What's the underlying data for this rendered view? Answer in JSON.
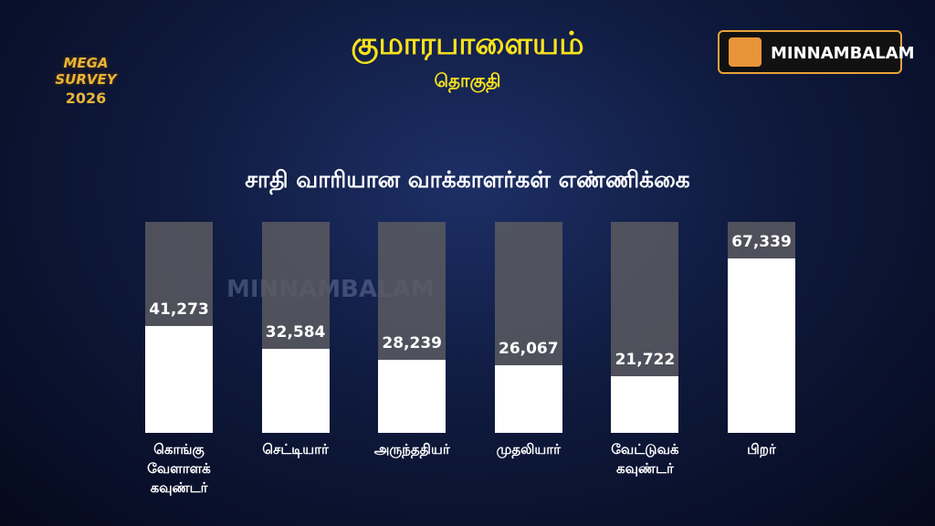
{
  "header": {
    "title": "குமாரபாளையம்",
    "subtitle": "தொகுதி",
    "badge_line1": "MEGA SURVEY",
    "badge_line2": "2026",
    "logo": "MINNAMBALAM",
    "watermark": "MINNAMBALAM"
  },
  "chart_data": {
    "type": "bar",
    "title": "சாதி வாரியான வாக்காளர்கள்  எண்ணிக்கை",
    "categories": [
      "கொங்கு வேளாளக் கவுண்டர்",
      "செட்டியார்",
      "அருந்ததியர்",
      "முதலியார்",
      "வேட்டுவக் கவுண்டர்",
      "பிறர்"
    ],
    "values": [
      41273,
      32584,
      28239,
      26067,
      21722,
      67339
    ],
    "value_labels": [
      "41,273",
      "32,584",
      "28,239",
      "26,067",
      "21,722",
      "67,339"
    ],
    "color": "#ffffff"
  }
}
